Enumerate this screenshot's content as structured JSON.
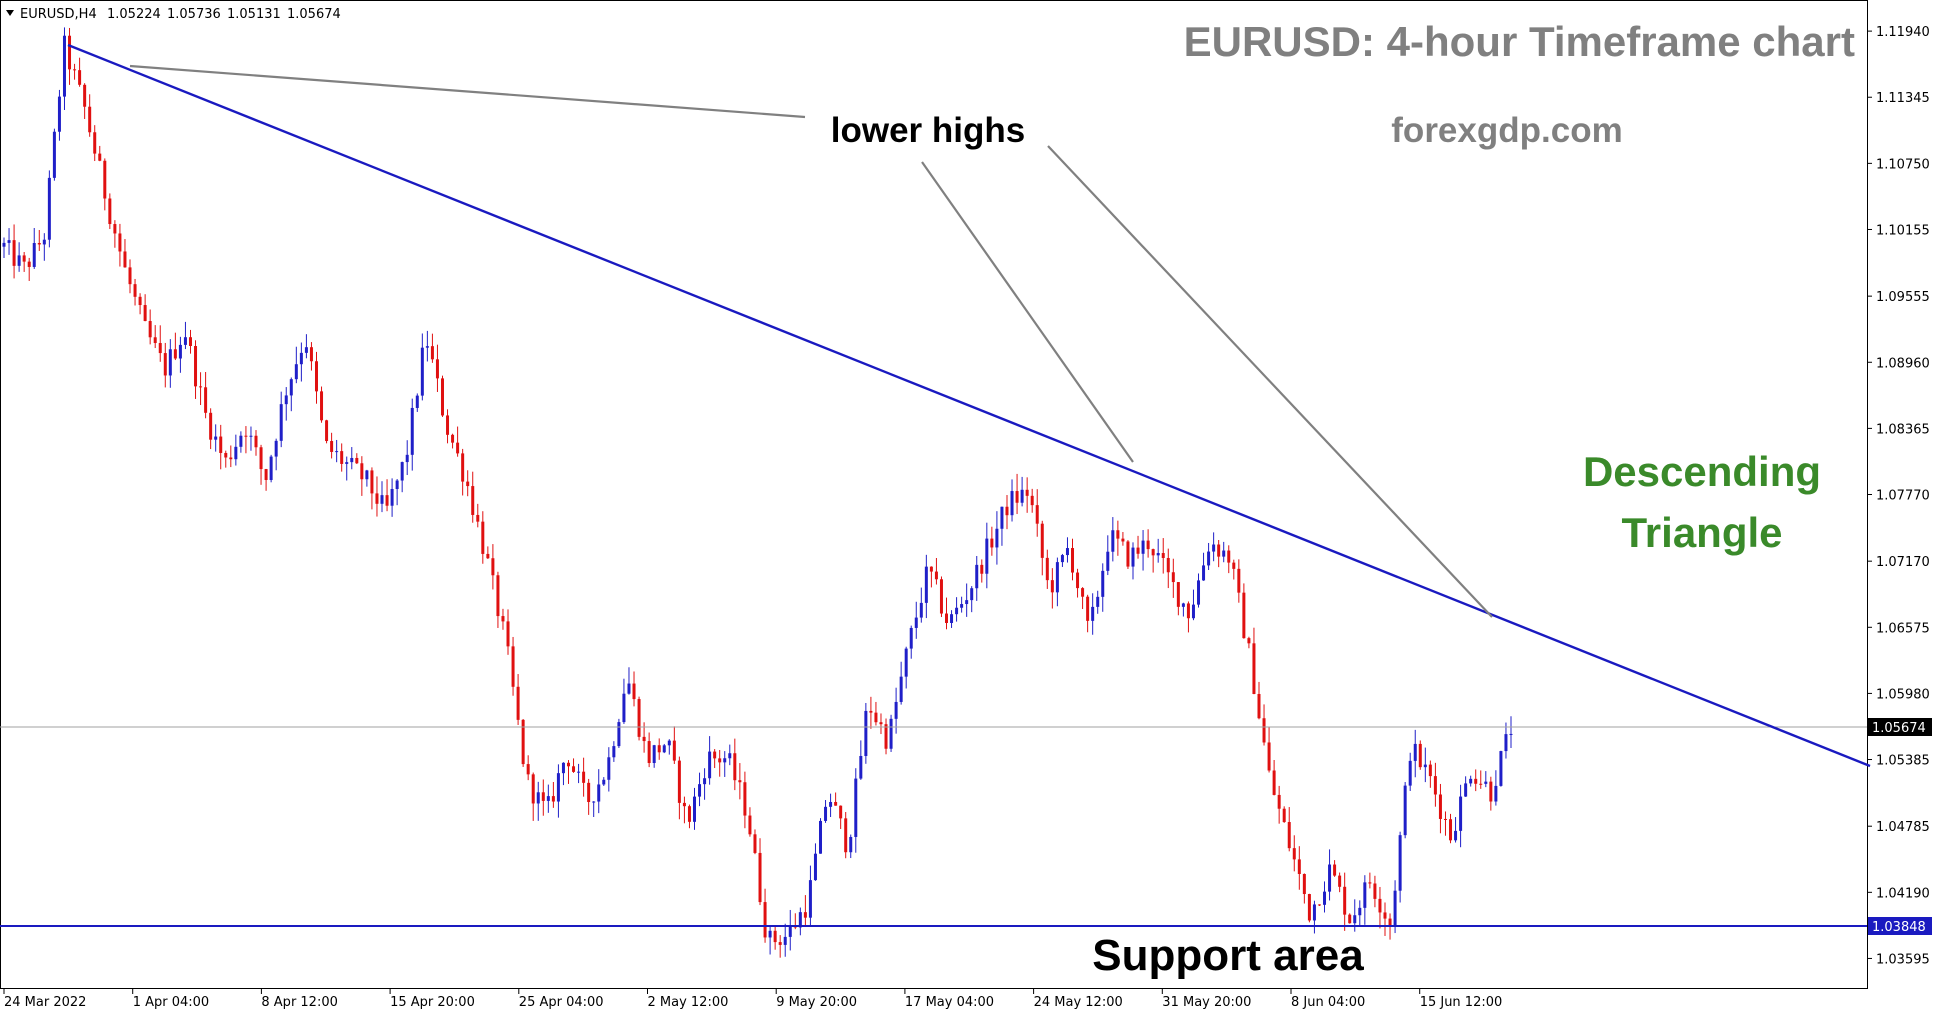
{
  "header": {
    "symbol_label": "EURUSD,H4",
    "open": "1.05224",
    "high": "1.05736",
    "low": "1.05131",
    "close": "1.05674",
    "menu_icon": "triangle-down-icon"
  },
  "annotations": {
    "title": "EURUSD: 4-hour Timeframe chart",
    "watermark": "forexgdp.com",
    "lower_highs": "lower highs",
    "pattern_line1": "Descending",
    "pattern_line2": "Triangle",
    "support": "Support area"
  },
  "colors": {
    "bull": "#1f1fc8",
    "bear": "#e01010",
    "trendline": "#1a1ac0",
    "title": "#808080",
    "pattern": "#3a8a2a",
    "pointer": "#7a7a7a",
    "support_tag_bg": "#1a1ac0",
    "price_tag_bg": "#000000"
  },
  "chart_data": {
    "type": "candlestick",
    "symbol": "EURUSD",
    "timeframe": "H4",
    "y_ticks": [
      "1.11940",
      "1.11345",
      "1.10750",
      "1.10155",
      "1.09555",
      "1.08960",
      "1.08365",
      "1.07770",
      "1.07170",
      "1.06575",
      "1.05980",
      "1.05385",
      "1.04785",
      "1.04190",
      "1.03595"
    ],
    "x_ticks": [
      "24 Mar 2022",
      "1 Apr 04:00",
      "8 Apr 12:00",
      "15 Apr 20:00",
      "25 Apr 04:00",
      "2 May 12:00",
      "9 May 20:00",
      "17 May 04:00",
      "24 May 12:00",
      "31 May 20:00",
      "8 Jun 04:00",
      "15 Jun 12:00"
    ],
    "current_price": "1.05674",
    "support_price": "1.03848",
    "ylim": [
      1.0332,
      1.1222
    ],
    "swing_points": [
      1.1,
      1.098,
      1.101,
      1.118,
      1.1125,
      1.105,
      1.098,
      1.0925,
      1.089,
      1.0925,
      1.085,
      1.0805,
      1.084,
      1.079,
      1.087,
      1.092,
      1.082,
      1.0805,
      1.079,
      1.076,
      1.081,
      1.092,
      1.084,
      1.079,
      1.072,
      1.064,
      1.052,
      1.049,
      1.0545,
      1.05,
      1.053,
      1.0615,
      1.054,
      1.0555,
      1.048,
      1.054,
      1.054,
      1.049,
      1.0375,
      1.038,
      1.041,
      1.051,
      1.046,
      1.059,
      1.0555,
      1.064,
      1.071,
      1.066,
      1.069,
      1.073,
      1.077,
      1.078,
      1.069,
      1.073,
      1.065,
      1.074,
      1.072,
      1.0735,
      1.07,
      1.067,
      1.0735,
      1.072,
      1.063,
      1.052,
      1.046,
      1.04,
      1.044,
      1.0395,
      1.043,
      1.039,
      1.055,
      1.052,
      1.047,
      1.053,
      1.051,
      1.0567
    ],
    "trendline": {
      "start": {
        "x": "24 Mar 2022",
        "y": 1.1187
      },
      "slope_points": [
        [
          60,
          1.1187
        ],
        [
          1510,
          1.053
        ]
      ]
    },
    "support_line": 1.03848
  }
}
